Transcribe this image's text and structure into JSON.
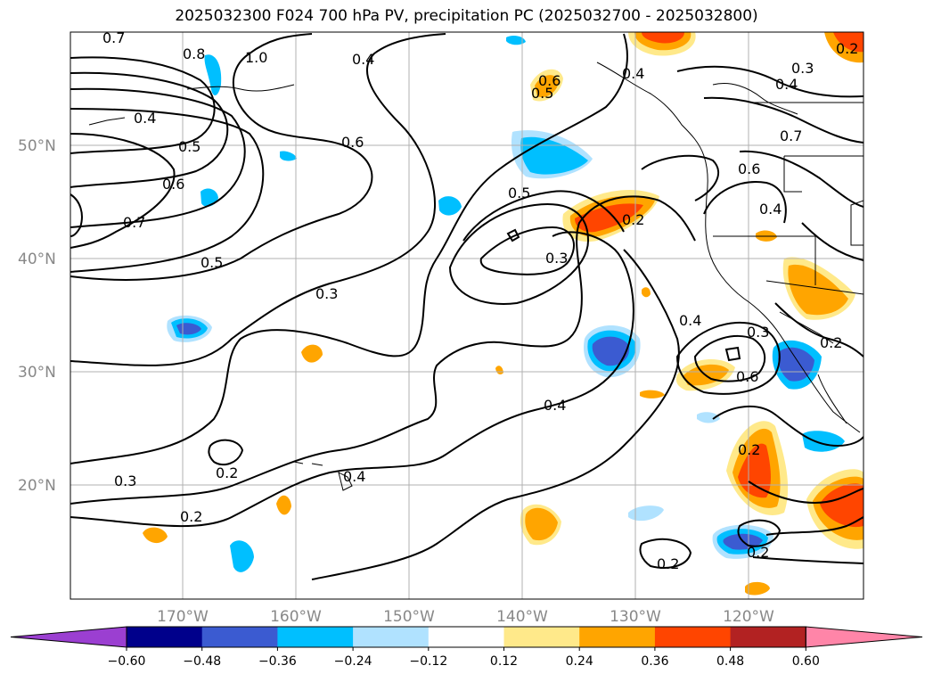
{
  "title": "2025032300 F024 700 hPa PV, precipitation PC (2025032700 - 2025032800)",
  "lat_labels": [
    "50°N",
    "40°N",
    "30°N",
    "20°N"
  ],
  "lon_labels": [
    "170°W",
    "160°W",
    "150°W",
    "140°W",
    "130°W",
    "120°W"
  ],
  "colorbar": {
    "colors": [
      "#9b3fd1",
      "#00008b",
      "#3b5bd1",
      "#00bfff",
      "#b0e2ff",
      "#ffffff",
      "#ffe98a",
      "#ffa500",
      "#ff4500",
      "#b22222",
      "#ff85a8"
    ],
    "tick_labels": [
      "−0.60",
      "−0.48",
      "−0.36",
      "−0.24",
      "−0.12",
      "0.12",
      "0.24",
      "0.36",
      "0.48",
      "0.60"
    ]
  },
  "contour_labels": [
    "0.7",
    "0.8",
    "1.0",
    "0.4",
    "0.4",
    "0.5",
    "0.6",
    "0.5",
    "0.6",
    "0.4",
    "0.3",
    "0.4",
    "0.7",
    "0.6",
    "0.7",
    "0.5",
    "0.6",
    "0.5",
    "0.2",
    "0.3",
    "0.4",
    "0.3",
    "0.2",
    "0.4",
    "0.3",
    "0.6",
    "0.4",
    "0.2",
    "0.2",
    "0.3",
    "0.2",
    "0.4",
    "0.2",
    "0.2",
    "0.2"
  ],
  "colors": {
    "contour": "#000000",
    "grid": "#b0b0b0",
    "coast": "#000000"
  }
}
